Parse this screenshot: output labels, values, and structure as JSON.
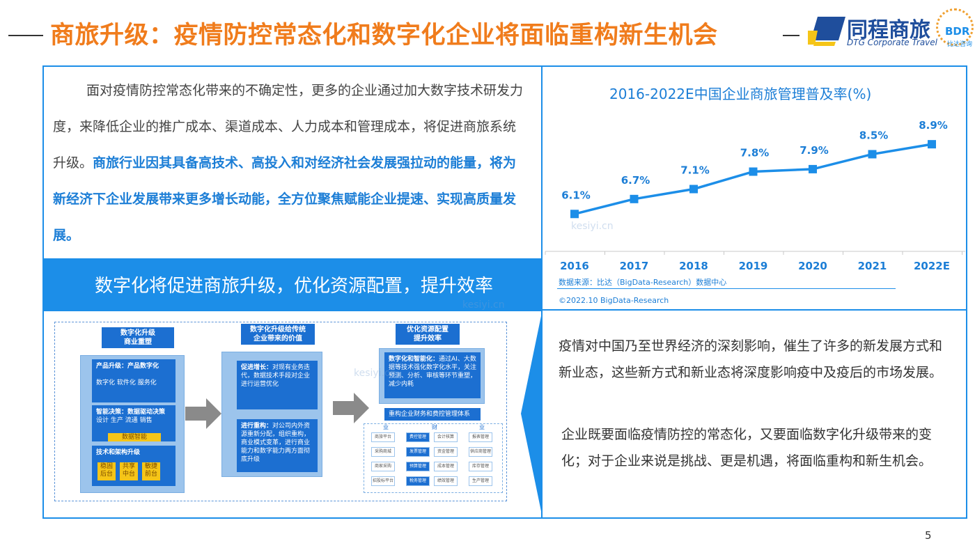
{
  "header": {
    "title": "商旅升级：疫情防控常态化和数字化企业将面临重构新生机会",
    "logo_cn": "同程商旅",
    "logo_en": "DTG Corporate Travel",
    "bdr_logo": "BDR",
    "bdr_sub": "比达咨询"
  },
  "left": {
    "para_normal": "面对疫情防控常态化带来的不确定性，更多的企业通过加大数字技术研发力度，来降低企业的推广成本、渠道成本、人力成本和管理成本，将促进商旅系统升级。",
    "para_bold": "商旅行业因其具备高技术、高投入和对经济社会发展强拉动的能量，将为新经济下企业发展带来更多增长动能，全方位聚焦赋能企业提速、实现高质量发展。",
    "banner": "数字化将促进商旅升级，优化资源配置，提升效率"
  },
  "diagram": {
    "col1_head": "数字化升级\n商业重塑",
    "col2_head": "数字化升级给传统\n企业带来的价值",
    "col3_head": "优化资源配置\n提升效率",
    "box1_title": "产品升级：产品数字化",
    "box1_items": "数字化  软件化  服务化",
    "box2_title": "智能决策：数据驱动决策",
    "box2_items": "设计  生产  流通  销售",
    "box2_tag": "数据智能",
    "box3_title": "技术和架构升级",
    "box3_tags": [
      "稳固后台",
      "共享中台",
      "敏捷前台"
    ],
    "box4_title": "促进增长：",
    "box4_text": "对现有业务迭代，数据技术手段对企业进行运营优化",
    "box5_title": "进行重构：",
    "box5_text": "对公司内外资源重新分配，组织重构，商业模式变革，进行商业能力和数字能力两方面彻底升级",
    "box6_title": "数字化和智能化：",
    "box6_text": "通过AI、大数据等技术强化数字化水平，关注预测、分析、审核等环节重塑，减少内耗",
    "box7": "重构企业财务和费控管理体系",
    "grid_cats": [
      "业",
      "财",
      "业"
    ],
    "grid_cells": [
      [
        "商旅平台",
        "费控管理",
        "会计核算",
        "报表管理"
      ],
      [
        "采购商城",
        "发票管理",
        "资金管理",
        "供应商管理"
      ],
      [
        "商家采购",
        "预算管理",
        "成本管理",
        "库存管理"
      ],
      [
        "招投标平台",
        "税务管理",
        "绩效管理",
        "生产管理"
      ]
    ]
  },
  "right": {
    "text1": "疫情对中国乃至世界经济的深刻影响，催生了许多的新发展方式和新业态，这些新方式和新业态将深度影响疫中及疫后的市场发展。",
    "text2": "企业既要面临疫情防控的常态化，又要面临数字化升级带来的变化；对于企业来说是挑战、更是机遇，将面临重构和新生机会。"
  },
  "chart_data": {
    "type": "line",
    "title": "2016-2022E中国企业商旅管理普及率(%)",
    "categories": [
      "2016",
      "2017",
      "2018",
      "2019",
      "2020",
      "2021",
      "2022E"
    ],
    "series": [
      {
        "values": [
          6.1,
          6.7,
          7.1,
          7.8,
          7.9,
          8.5,
          8.9
        ]
      }
    ],
    "data_labels": [
      "6.1%",
      "6.7%",
      "7.1%",
      "7.8%",
      "7.9%",
      "8.5%",
      "8.9%"
    ],
    "xlabel": "",
    "ylabel": "",
    "grid": false,
    "color": "#1c8ee8",
    "source": "数据来源：比达（BigData-Research）数据中心",
    "copyright": "©2022.10 BigData-Research"
  },
  "page_number": "5",
  "watermark": "kesiyi.cn"
}
